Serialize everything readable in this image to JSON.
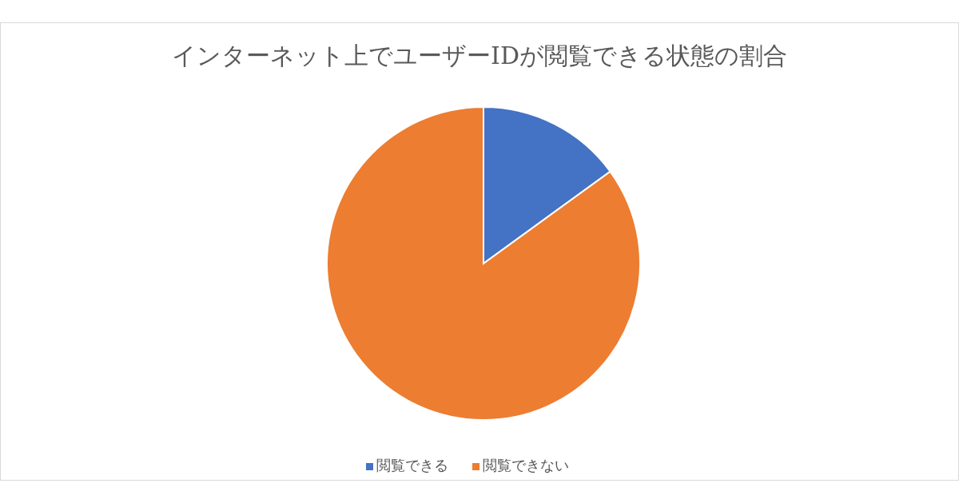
{
  "chart_data": {
    "type": "pie",
    "title": "インターネット上でユーザーIDが閲覧できる状態の割合",
    "categories": [
      "閲覧できる",
      "閲覧できない"
    ],
    "values": [
      15,
      85
    ],
    "colors": [
      "#4472c4",
      "#ed7d31"
    ],
    "legend": "bottom"
  }
}
